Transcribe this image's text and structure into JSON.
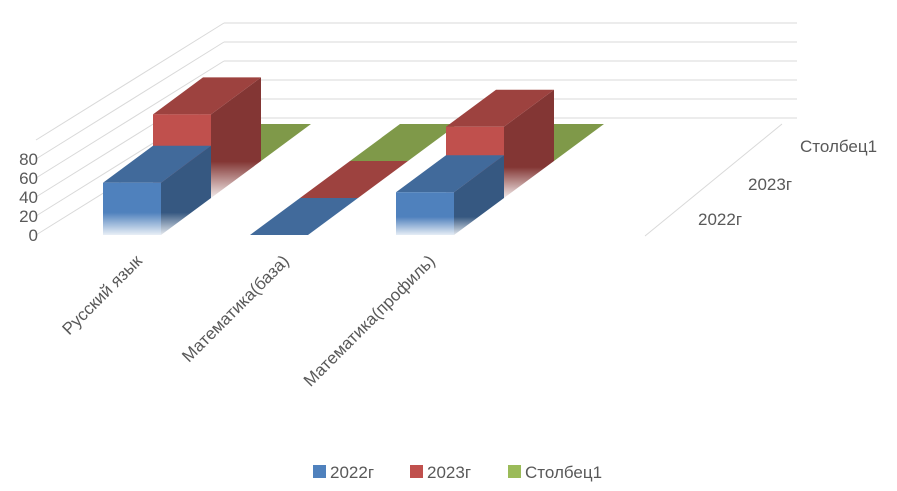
{
  "chart_data": {
    "type": "bar",
    "subtype": "3d-column",
    "title": "",
    "categories": [
      "Русский язык",
      "Математика(база)",
      "Математика(профиль)"
    ],
    "series": [
      {
        "name": "2022г",
        "values": [
          55,
          0,
          45
        ],
        "color": "#4f81bd"
      },
      {
        "name": "2023г",
        "values": [
          88,
          0,
          75
        ],
        "color": "#c0504d"
      },
      {
        "name": "Столбец1",
        "values": [
          0,
          0,
          0
        ],
        "color": "#9bbb59"
      }
    ],
    "y_ticks": [
      "0",
      "20",
      "40",
      "60",
      "80"
    ],
    "ylim": [
      0,
      100
    ],
    "grid": true,
    "legend": "bottom"
  }
}
